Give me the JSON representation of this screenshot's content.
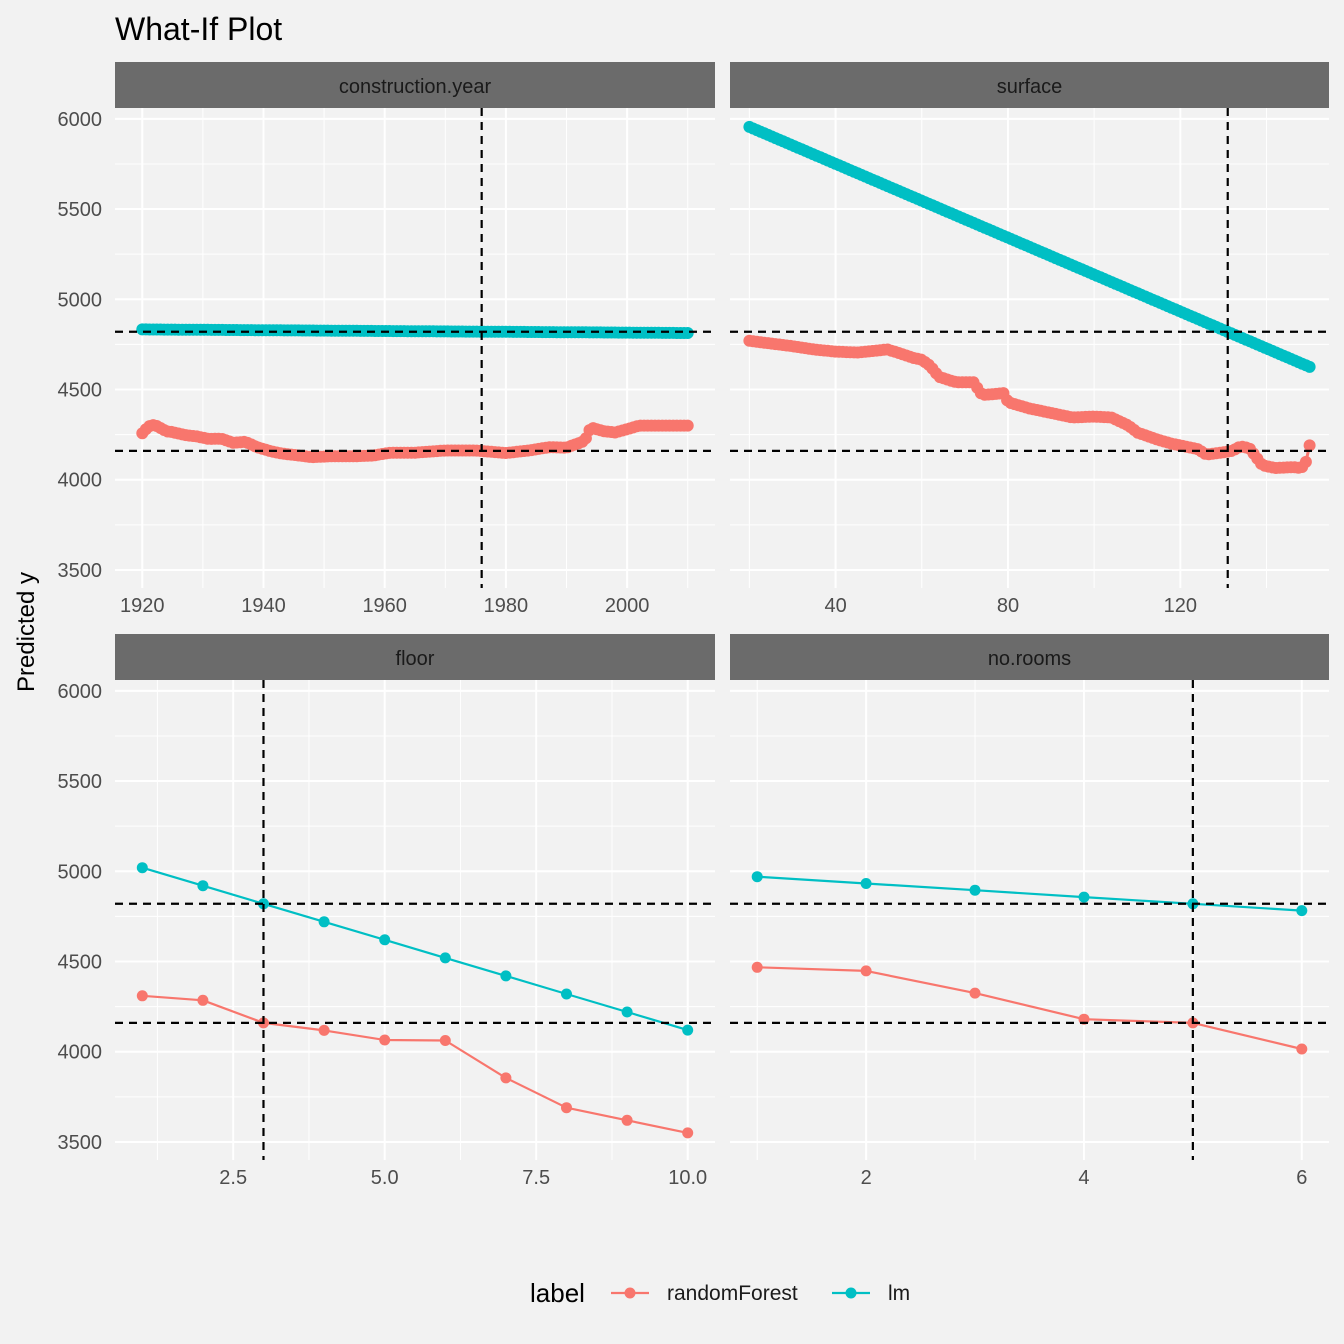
{
  "title": "What-If Plot",
  "ylabel": "Predicted y",
  "legend": {
    "title": "label",
    "items": [
      {
        "name": "randomForest",
        "color": "#F8766D"
      },
      {
        "name": "lm",
        "color": "#00BFC4"
      }
    ]
  },
  "colors": {
    "background": "#f2f2f2",
    "strip": "#6b6b6b",
    "grid": "#ffffff",
    "randomForest": "#F8766D",
    "lm": "#00BFC4",
    "reference_line": "#000000"
  },
  "chart_data": {
    "type": "line",
    "facets": [
      "construction.year",
      "surface",
      "floor",
      "no.rooms"
    ],
    "ylim": [
      3400,
      6060
    ],
    "yticks": [
      3500,
      4000,
      4500,
      5000,
      5500,
      6000
    ],
    "grid": true,
    "legend_position": "bottom",
    "reference_lines": {
      "y": [
        4820,
        4160
      ],
      "x": {
        "construction.year": 1976,
        "surface": 131,
        "floor": 3,
        "no.rooms": 5
      }
    },
    "panels": [
      {
        "facet": "construction.year",
        "xlim": [
          1915.5,
          2014.5
        ],
        "xticks": [
          1920,
          1940,
          1960,
          1980,
          2000
        ],
        "marker_size": "large",
        "series": [
          {
            "name": "lm",
            "x": [
              1920,
              2010
            ],
            "y": [
              4833,
              4813
            ],
            "dense": true
          },
          {
            "name": "randomForest",
            "x": [
              1920,
              1921,
              1922,
              1924,
              1925,
              1927,
              1929,
              1931,
              1933,
              1935,
              1937,
              1939,
              1941,
              1943,
              1945,
              1948,
              1951,
              1955,
              1958,
              1961,
              1965,
              1970,
              1975,
              1980,
              1984,
              1987,
              1990,
              1993,
              1994,
              1996,
              1998,
              2000,
              2002,
              2005,
              2010
            ],
            "y": [
              4258,
              4295,
              4305,
              4268,
              4264,
              4248,
              4240,
              4226,
              4228,
              4205,
              4210,
              4180,
              4160,
              4145,
              4138,
              4125,
              4130,
              4130,
              4134,
              4150,
              4150,
              4162,
              4162,
              4148,
              4163,
              4180,
              4178,
              4215,
              4290,
              4270,
              4262,
              4280,
              4300,
              4300,
              4300
            ],
            "dense": true
          }
        ]
      },
      {
        "facet": "surface",
        "xlim": [
          15.5,
          154.5
        ],
        "xticks": [
          40,
          80,
          120
        ],
        "marker_size": "large",
        "series": [
          {
            "name": "lm",
            "x": [
              20,
              150
            ],
            "y": [
              5955,
              4625
            ],
            "dense": true
          },
          {
            "name": "randomForest",
            "x": [
              20,
              25,
              30,
              35,
              40,
              45,
              48,
              52,
              55,
              58,
              60,
              62,
              64,
              68,
              72,
              74,
              77,
              79,
              80,
              85,
              90,
              95,
              100,
              104,
              108,
              110,
              112,
              115,
              118,
              122,
              124,
              126,
              128,
              132,
              134,
              136,
              137,
              139,
              142,
              146,
              148,
              149,
              150
            ],
            "y": [
              4770,
              4755,
              4740,
              4722,
              4710,
              4705,
              4712,
              4722,
              4700,
              4675,
              4665,
              4630,
              4570,
              4540,
              4540,
              4470,
              4475,
              4480,
              4430,
              4395,
              4370,
              4345,
              4350,
              4345,
              4300,
              4262,
              4245,
              4220,
              4200,
              4180,
              4170,
              4140,
              4145,
              4160,
              4185,
              4175,
              4145,
              4080,
              4065,
              4070,
              4065,
              4085,
              4190
            ],
            "dense": true
          }
        ]
      },
      {
        "facet": "floor",
        "xlim": [
          0.55,
          10.45
        ],
        "xticks": [
          2.5,
          5.0,
          7.5,
          10.0
        ],
        "tick_labels": [
          "2.5",
          "5.0",
          "7.5",
          "10.0"
        ],
        "marker_size": "small",
        "series": [
          {
            "name": "randomForest",
            "x": [
              1,
              2,
              3,
              4,
              5,
              6,
              7,
              8,
              9,
              10
            ],
            "y": [
              4310,
              4285,
              4160,
              4118,
              4065,
              4062,
              3855,
              3690,
              3620,
              3550
            ]
          },
          {
            "name": "lm",
            "x": [
              1,
              2,
              3,
              4,
              5,
              6,
              7,
              8,
              9,
              10
            ],
            "y": [
              5020,
              4920,
              4820,
              4720,
              4620,
              4520,
              4420,
              4320,
              4220,
              4120
            ]
          }
        ]
      },
      {
        "facet": "no.rooms",
        "xlim": [
          0.75,
          6.25
        ],
        "xticks": [
          2,
          4,
          6
        ],
        "marker_size": "small",
        "series": [
          {
            "name": "randomForest",
            "x": [
              1,
              2,
              3,
              4,
              5,
              6
            ],
            "y": [
              4468,
              4448,
              4325,
              4180,
              4160,
              4015
            ]
          },
          {
            "name": "lm",
            "x": [
              1,
              2,
              3,
              4,
              5,
              6
            ],
            "y": [
              4970,
              4932,
              4895,
              4857,
              4820,
              4782
            ]
          }
        ]
      }
    ]
  }
}
